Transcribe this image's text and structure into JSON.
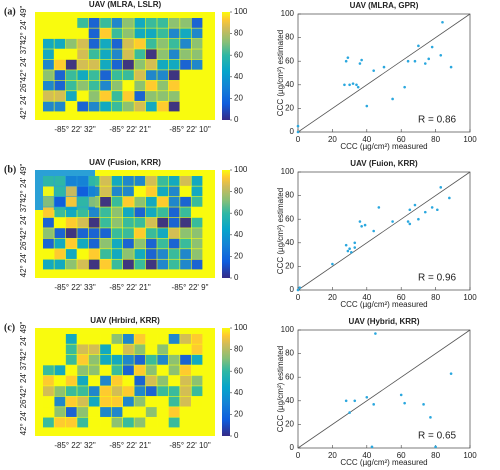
{
  "panel_labels": [
    "(a)",
    "(b)",
    "(c)"
  ],
  "maps": [
    {
      "title": "UAV (MLRA, LSLR)",
      "lat_labels": [
        "42° 24' 49\"",
        "42° 24' 37\"",
        "42° 24' 26\""
      ],
      "lon_labels": [
        "-85° 22' 32\"",
        "-85° 22' 21\"",
        "-85° 22' 10\""
      ],
      "colorbar_lim": [
        0,
        100
      ],
      "colorbar_ticks": [
        0,
        20,
        40,
        60,
        80,
        100
      ]
    },
    {
      "title": "UAV (Fusion, KRR)",
      "lat_labels": [
        "42° 24' 49\"",
        "42° 24' 37\"",
        "42° 24' 26\""
      ],
      "lon_labels": [
        "-85° 22' 33\"",
        "-85° 22' 21\"",
        "-85° 22' 9\""
      ],
      "colorbar_lim": [
        0,
        100
      ],
      "colorbar_ticks": [
        0,
        20,
        40,
        60,
        80,
        100
      ]
    },
    {
      "title": "UAV (Hrbird, KRR)",
      "lat_labels": [
        "42° 24' 49\"",
        "42° 24' 37\"",
        "42° 24' 26\""
      ],
      "lon_labels": [
        "-85° 22' 32\"",
        "-85° 22' 21\"",
        "-85° 22' 10\""
      ],
      "colorbar_lim": [
        0,
        100
      ],
      "colorbar_ticks": [
        0,
        20,
        40,
        60,
        80,
        100
      ]
    }
  ],
  "chart_data": [
    {
      "type": "scatter",
      "title": "UAV (MLRA, GPR)",
      "x_label": "CCC (µg/cm²) measured",
      "y_label": "CCC (µg/cm²) estimated",
      "annotation": "R = 0.86",
      "color": "#2aa7de",
      "x": [
        0,
        0,
        27,
        30,
        28,
        29,
        34,
        35,
        36,
        37,
        32,
        40,
        44,
        50,
        55,
        62,
        64,
        68,
        70,
        74,
        76,
        78,
        84,
        89,
        83
      ],
      "y": [
        5,
        0,
        40,
        40,
        60,
        63,
        40,
        38,
        58,
        61,
        41,
        22,
        52,
        55,
        28,
        38,
        60,
        60,
        73,
        58,
        62,
        72,
        93,
        55,
        65
      ],
      "xlim": [
        0,
        100
      ],
      "ylim": [
        0,
        100
      ],
      "xticks": [
        0,
        20,
        40,
        60,
        80,
        100
      ],
      "yticks": [
        0,
        20,
        40,
        60,
        80,
        100
      ]
    },
    {
      "type": "scatter",
      "title": "UAV (Fuion, KRR)",
      "x_label": "CCC (µg/cm²) measured",
      "y_label": "CCC (µg/cm²) estimated",
      "annotation": "R = 0.96",
      "color": "#2aa7de",
      "x": [
        0,
        1,
        20,
        28,
        29,
        30,
        31,
        33,
        33,
        36,
        37,
        39,
        44,
        47,
        55,
        64,
        65,
        65,
        68,
        70,
        74,
        78,
        81,
        83,
        88
      ],
      "y": [
        0,
        2,
        22,
        38,
        33,
        35,
        32,
        36,
        40,
        58,
        54,
        55,
        50,
        70,
        58,
        58,
        56,
        68,
        72,
        60,
        66,
        70,
        68,
        87,
        78
      ],
      "xlim": [
        0,
        100
      ],
      "ylim": [
        0,
        100
      ],
      "xticks": [
        0,
        20,
        40,
        60,
        80,
        100
      ],
      "yticks": [
        0,
        20,
        40,
        60,
        80,
        100
      ]
    },
    {
      "type": "scatter",
      "title": "UAV (Hybrid, KRR)",
      "x_label": "CCC (µg/cm²) measured",
      "y_label": "CCC (µg/cm²) estimated",
      "annotation": "R = 0.65",
      "color": "#2aa7de",
      "x": [
        28,
        30,
        33,
        40,
        43,
        44,
        45,
        60,
        62,
        73,
        77,
        89,
        80
      ],
      "y": [
        40,
        30,
        40,
        43,
        1,
        37,
        97,
        45,
        38,
        37,
        26,
        63,
        1
      ],
      "xlim": [
        0,
        100
      ],
      "ylim": [
        0,
        100
      ],
      "xticks": [
        0,
        20,
        40,
        60,
        80,
        100
      ],
      "yticks": [
        0,
        20,
        40,
        60,
        80,
        100
      ]
    }
  ]
}
